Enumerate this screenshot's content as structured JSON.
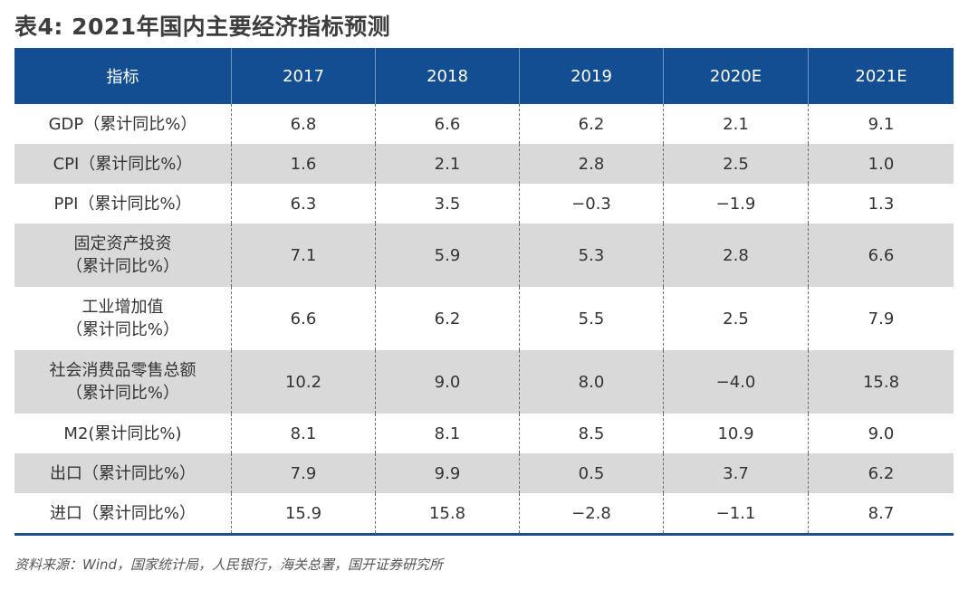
{
  "title": "表4: 2021年国内主要经济指标预测",
  "table": {
    "headers": [
      "指标",
      "2017",
      "2018",
      "2019",
      "2020E",
      "2021E"
    ],
    "rows": [
      {
        "label": [
          "GDP（累计同比%）"
        ],
        "values": [
          "6.8",
          "6.6",
          "6.2",
          "2.1",
          "9.1"
        ]
      },
      {
        "label": [
          "CPI（累计同比%）"
        ],
        "values": [
          "1.6",
          "2.1",
          "2.8",
          "2.5",
          "1.0"
        ]
      },
      {
        "label": [
          "PPI（累计同比%）"
        ],
        "values": [
          "6.3",
          "3.5",
          "−0.3",
          "−1.9",
          "1.3"
        ]
      },
      {
        "label": [
          "固定资产投资",
          "（累计同比%）"
        ],
        "values": [
          "7.1",
          "5.9",
          "5.3",
          "2.8",
          "6.6"
        ]
      },
      {
        "label": [
          "工业增加值",
          "（累计同比%）"
        ],
        "values": [
          "6.6",
          "6.2",
          "5.5",
          "2.5",
          "7.9"
        ]
      },
      {
        "label": [
          "社会消费品零售总额",
          "（累计同比%）"
        ],
        "values": [
          "10.2",
          "9.0",
          "8.0",
          "−4.0",
          "15.8"
        ]
      },
      {
        "label": [
          "M2(累计同比%)"
        ],
        "values": [
          "8.1",
          "8.1",
          "8.5",
          "10.9",
          "9.0"
        ]
      },
      {
        "label": [
          "出口（累计同比%）"
        ],
        "values": [
          "7.9",
          "9.9",
          "0.5",
          "3.7",
          "6.2"
        ]
      },
      {
        "label": [
          "进口（累计同比%）"
        ],
        "values": [
          "15.9",
          "15.8",
          "−2.8",
          "−1.1",
          "8.7"
        ]
      }
    ]
  },
  "source": "资料来源：Wind，国家统计局，人民银行，海关总署，国开证券研究所",
  "colors": {
    "header_bg": "#124e91",
    "row_gray": "#d9d9da",
    "row_white": "#ffffff",
    "bottom_rule": "#1a4f8e"
  }
}
